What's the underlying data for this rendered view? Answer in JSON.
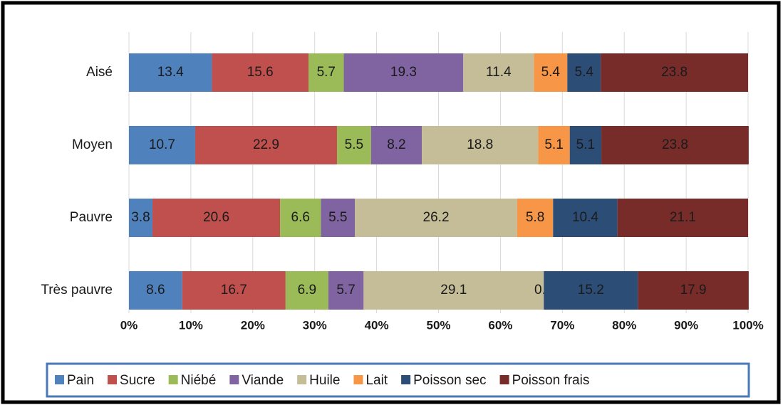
{
  "chart_data": {
    "type": "stacked-barh",
    "categories": [
      "Aisé",
      "Moyen",
      "Pauvre",
      "Très pauvre"
    ],
    "series": [
      {
        "name": "Pain",
        "color": "#4f81bd",
        "values": [
          13.4,
          10.7,
          3.8,
          8.6
        ],
        "value_labels": [
          "13.4",
          "10.7",
          "3.8",
          "8.6"
        ]
      },
      {
        "name": "Sucre",
        "color": "#c0504d",
        "values": [
          15.6,
          22.9,
          20.6,
          16.7
        ],
        "value_labels": [
          "15.6",
          "22.9",
          "20.6",
          "16.7"
        ]
      },
      {
        "name": "Niébé",
        "color": "#9bbb59",
        "values": [
          5.7,
          5.5,
          6.6,
          6.9
        ],
        "value_labels": [
          "5.7",
          "5.5",
          "6.6",
          "6.9"
        ]
      },
      {
        "name": "Viande",
        "color": "#8064a2",
        "values": [
          19.3,
          8.2,
          5.5,
          5.7
        ],
        "value_labels": [
          "19.3",
          "8.2",
          "5.5",
          "5.7"
        ]
      },
      {
        "name": "Huile",
        "color": "#c4bd97",
        "values": [
          11.4,
          18.8,
          26.2,
          29.1
        ],
        "value_labels": [
          "11.4",
          "18.8",
          "26.2",
          "29.1"
        ]
      },
      {
        "name": "Lait",
        "color": "#f79646",
        "values": [
          5.4,
          5.1,
          5.8,
          0.0
        ],
        "value_labels": [
          "5.4",
          "5.1",
          "5.8",
          "0.0"
        ]
      },
      {
        "name": "Poisson sec",
        "color": "#2c4d75",
        "values": [
          5.4,
          5.1,
          10.4,
          15.2
        ],
        "value_labels": [
          "5.4",
          "5.1",
          "10.4",
          "15.2"
        ]
      },
      {
        "name": "Poisson frais",
        "color": "#772c2a",
        "values": [
          23.8,
          23.8,
          21.1,
          17.9
        ],
        "value_labels": [
          "23.8",
          "23.8",
          "21.1",
          "17.9"
        ]
      }
    ],
    "xlim": [
      0,
      100
    ],
    "xticks": [
      {
        "value": 0,
        "label": "0%"
      },
      {
        "value": 10,
        "label": "10%"
      },
      {
        "value": 20,
        "label": "20%"
      },
      {
        "value": 30,
        "label": "30%"
      },
      {
        "value": 40,
        "label": "40%"
      },
      {
        "value": 50,
        "label": "50%"
      },
      {
        "value": 60,
        "label": "60%"
      },
      {
        "value": 70,
        "label": "70%"
      },
      {
        "value": 80,
        "label": "80%"
      },
      {
        "value": 90,
        "label": "90%"
      },
      {
        "value": 100,
        "label": "100%"
      }
    ],
    "grid": true,
    "legend": "bottom"
  }
}
